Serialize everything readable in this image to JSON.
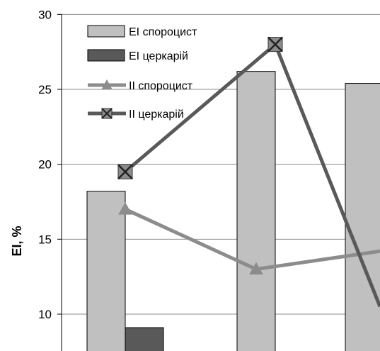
{
  "chart_data": {
    "type": "bar",
    "title": "",
    "xlabel": "",
    "ylabel": "EI, %",
    "ylim": [
      8,
      30
    ],
    "yticks": [
      "10",
      "15",
      "20",
      "25",
      "30"
    ],
    "categories": [
      "",
      "",
      ""
    ],
    "bar_series": [
      {
        "name": "EI спороцист",
        "values": [
          18.2,
          26.2,
          25.4
        ],
        "color": "#c0c0c0"
      },
      {
        "name": "EI церкарій",
        "values": [
          9.1,
          null,
          null
        ],
        "color": "#595959"
      }
    ],
    "line_series": [
      {
        "name": "II спороцист",
        "values": [
          17.0,
          13.0,
          14.2
        ],
        "marker": "triangle",
        "color": "#8c8c8c"
      },
      {
        "name": "II церкарій",
        "values": [
          19.5,
          28.0,
          10.5
        ],
        "marker": "x",
        "color": "#595959"
      }
    ],
    "grid": true,
    "legend_position": "top-left"
  }
}
